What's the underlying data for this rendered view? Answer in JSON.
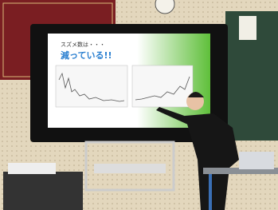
{
  "screen": {
    "subtitle": "スズメ数は・・・",
    "title": "減っている!!"
  }
}
